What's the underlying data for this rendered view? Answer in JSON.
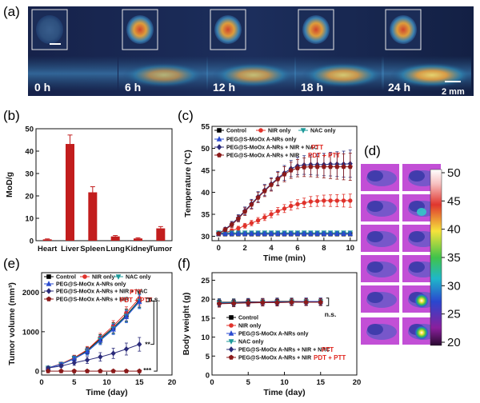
{
  "panel_labels": {
    "a": "(a)",
    "b": "(b)",
    "c": "(c)",
    "d": "(d)",
    "e": "(e)",
    "f": "(f)"
  },
  "colors": {
    "bar": "#c21d1d",
    "control": "#000000",
    "nir": "#e0322b",
    "nac": "#1e9a9a",
    "peg": "#2a4bd0",
    "peg_nir_nac": "#2b2b7a",
    "peg_nir": "#8b1a1a",
    "annotation_red": "#e0261f"
  },
  "photoacoustic": {
    "times": [
      "0 h",
      "6 h",
      "12 h",
      "18 h",
      "24 h"
    ],
    "scale_label": "2 mm"
  },
  "thermal": {
    "colorbar_ticks": [
      "50",
      "45",
      "40",
      "35",
      "30",
      "25",
      "20"
    ]
  },
  "chart_data": [
    {
      "id": "b",
      "type": "bar",
      "categories": [
        "Heart",
        "Liver",
        "Spleen",
        "Lung",
        "Kidney",
        "Tumor"
      ],
      "values": [
        0.6,
        43.2,
        21.6,
        1.9,
        1.0,
        5.5
      ],
      "errors": [
        0.2,
        4.0,
        2.5,
        0.4,
        0.3,
        0.8
      ],
      "ylabel": "MoD/g",
      "ylim": [
        0,
        50
      ],
      "yticks": [
        0,
        10,
        20,
        30,
        40,
        50
      ]
    },
    {
      "id": "c",
      "type": "line",
      "xlabel": "Time (min)",
      "ylabel": "Temperature (°C)",
      "xlim": [
        -0.5,
        10.5
      ],
      "ylim": [
        29,
        55
      ],
      "xticks": [
        0,
        2,
        4,
        6,
        8,
        10
      ],
      "yticks": [
        30,
        35,
        40,
        45,
        50,
        55
      ],
      "legend": [
        "Control",
        "NIR only",
        "NAC only",
        "PEG@S-MoOx A-NRs only",
        "PEG@S-MoOx A-NRs + NIR + NAC",
        "PEG@S-MoOx A-NRs + NIR"
      ],
      "annotations": [
        "PTT",
        "PDT + PTT"
      ],
      "x": [
        0,
        0.5,
        1,
        1.5,
        2,
        2.5,
        3,
        3.5,
        4,
        4.5,
        5,
        5.5,
        6,
        6.5,
        7,
        7.5,
        8,
        8.5,
        9,
        9.5,
        10
      ],
      "series": [
        {
          "name": "Control",
          "key": "control",
          "marker": "square",
          "values": [
            30.5,
            30.5,
            30.5,
            30.5,
            30.5,
            30.5,
            30.5,
            30.5,
            30.5,
            30.5,
            30.5,
            30.5,
            30.5,
            30.5,
            30.5,
            30.5,
            30.5,
            30.5,
            30.5,
            30.5,
            30.5
          ]
        },
        {
          "name": "NIR only",
          "key": "nir",
          "marker": "circle",
          "values": [
            30.5,
            30.8,
            31.3,
            31.8,
            32.4,
            33.0,
            33.6,
            34.3,
            35.0,
            35.7,
            36.3,
            36.9,
            37.3,
            37.6,
            37.9,
            38.0,
            38.1,
            38.1,
            38.1,
            38.1,
            38.1
          ]
        },
        {
          "name": "NAC only",
          "key": "nac",
          "marker": "tri-down",
          "values": [
            30.8,
            30.8,
            30.8,
            30.8,
            30.8,
            30.8,
            30.8,
            30.8,
            30.8,
            30.8,
            30.8,
            30.8,
            30.8,
            30.8,
            30.8,
            30.8,
            30.8,
            30.8,
            30.8,
            30.8,
            30.8
          ]
        },
        {
          "name": "PEG@S-MoOx A-NRs only",
          "key": "peg",
          "marker": "tri-up",
          "values": [
            30.6,
            30.6,
            30.6,
            30.6,
            30.6,
            30.6,
            30.6,
            30.6,
            30.6,
            30.6,
            30.6,
            30.6,
            30.6,
            30.6,
            30.6,
            30.6,
            30.6,
            30.6,
            30.6,
            30.6,
            30.6
          ]
        },
        {
          "name": "PEG@S-MoOx A-NRs + NIR + NAC",
          "key": "peg_nir_nac",
          "marker": "diamond",
          "values": [
            30.6,
            31.6,
            32.8,
            34.2,
            35.8,
            37.4,
            39.0,
            40.5,
            41.9,
            43.2,
            44.4,
            45.4,
            46.0,
            46.2,
            46.3,
            46.3,
            46.3,
            46.4,
            46.4,
            46.4,
            46.5
          ]
        },
        {
          "name": "PEG@S-MoOx A-NRs + NIR",
          "key": "peg_nir",
          "marker": "pentagon",
          "values": [
            30.6,
            31.5,
            32.6,
            34.0,
            35.6,
            37.2,
            38.8,
            40.3,
            41.7,
            43.0,
            44.1,
            45.0,
            45.5,
            45.7,
            45.8,
            45.8,
            45.8,
            45.8,
            45.8,
            45.8,
            45.8
          ]
        }
      ]
    },
    {
      "id": "e",
      "type": "line",
      "xlabel": "Time (day)",
      "ylabel": "Tumor volume (mm³)",
      "xlim": [
        0,
        20
      ],
      "ylim": [
        -100,
        2500
      ],
      "xticks": [
        0,
        5,
        10,
        15,
        20
      ],
      "yticks": [
        0,
        1000,
        2000
      ],
      "legend": [
        "Control",
        "NIR only",
        "NAC only",
        "PEG@S-MoOx A-NRs only",
        "PEG@S-MoOx A-NRs + NIR + NAC",
        "PEG@S-MoOx A-NRs + NIR"
      ],
      "annotations": [
        "PTT",
        "PDT + PTT",
        "n.s.",
        "**",
        "***"
      ],
      "x": [
        1,
        3,
        5,
        7,
        9,
        11,
        13,
        15
      ],
      "series": [
        {
          "name": "Control",
          "key": "control",
          "marker": "square",
          "values": [
            80,
            180,
            330,
            520,
            820,
            1100,
            1420,
            1800
          ]
        },
        {
          "name": "NIR only",
          "key": "nir",
          "marker": "circle",
          "values": [
            80,
            185,
            340,
            540,
            850,
            1150,
            1480,
            1850
          ]
        },
        {
          "name": "NAC only",
          "key": "nac",
          "marker": "tri-down",
          "values": [
            80,
            175,
            320,
            500,
            800,
            1080,
            1400,
            1780
          ]
        },
        {
          "name": "PEG@S-MoOx A-NRs only",
          "key": "peg",
          "marker": "tri-up",
          "values": [
            80,
            170,
            310,
            490,
            780,
            1060,
            1380,
            1760
          ]
        },
        {
          "name": "PEG@S-MoOx A-NRs + NIR + NAC",
          "key": "peg_nir_nac",
          "marker": "diamond",
          "values": [
            80,
            130,
            210,
            280,
            360,
            450,
            560,
            680
          ]
        },
        {
          "name": "PEG@S-MoOx A-NRs + NIR",
          "key": "peg_nir",
          "marker": "pentagon",
          "values": [
            0,
            0,
            0,
            0,
            0,
            0,
            0,
            0
          ]
        }
      ]
    },
    {
      "id": "f",
      "type": "line",
      "xlabel": "Time (day)",
      "ylabel": "Body weight (g)",
      "xlim": [
        0,
        20
      ],
      "ylim": [
        0,
        27
      ],
      "xticks": [
        0,
        5,
        10,
        15,
        20
      ],
      "yticks": [
        0,
        5,
        10,
        15,
        20,
        25
      ],
      "legend": [
        "Control",
        "NIR only",
        "PEG@S-MoOx A-NRs only",
        "NAC only",
        "PEG@S-MoOx A-NRs + NIR + NAC",
        "PEG@S-MoOx A-NRs + NIR"
      ],
      "annotations": [
        "PTT",
        "PDT + PTT",
        "n.s."
      ],
      "x": [
        1,
        3,
        5,
        7,
        9,
        11,
        13,
        15
      ],
      "series": [
        {
          "name": "Control",
          "key": "control",
          "marker": "square",
          "values": [
            19.2,
            19.2,
            19.3,
            19.3,
            19.4,
            19.4,
            19.4,
            19.4
          ]
        },
        {
          "name": "NIR only",
          "key": "nir",
          "marker": "circle",
          "values": [
            19.0,
            19.1,
            19.2,
            19.3,
            19.3,
            19.3,
            19.4,
            19.4
          ]
        },
        {
          "name": "PEG@S-MoOx A-NRs only",
          "key": "peg",
          "marker": "tri-up",
          "values": [
            19.1,
            19.1,
            19.2,
            19.2,
            19.3,
            19.3,
            19.4,
            19.4
          ]
        },
        {
          "name": "NAC only",
          "key": "nac",
          "marker": "tri-down",
          "values": [
            19.0,
            19.1,
            19.1,
            19.2,
            19.2,
            19.3,
            19.3,
            19.3
          ]
        },
        {
          "name": "PEG@S-MoOx A-NRs + NIR + NAC",
          "key": "peg_nir_nac",
          "marker": "diamond",
          "values": [
            18.9,
            19.0,
            19.1,
            19.2,
            19.2,
            19.3,
            19.3,
            19.3
          ]
        },
        {
          "name": "PEG@S-MoOx A-NRs + NIR",
          "key": "peg_nir",
          "marker": "pentagon",
          "values": [
            18.8,
            18.9,
            19.0,
            19.1,
            19.1,
            19.2,
            19.2,
            19.2
          ]
        }
      ]
    }
  ]
}
